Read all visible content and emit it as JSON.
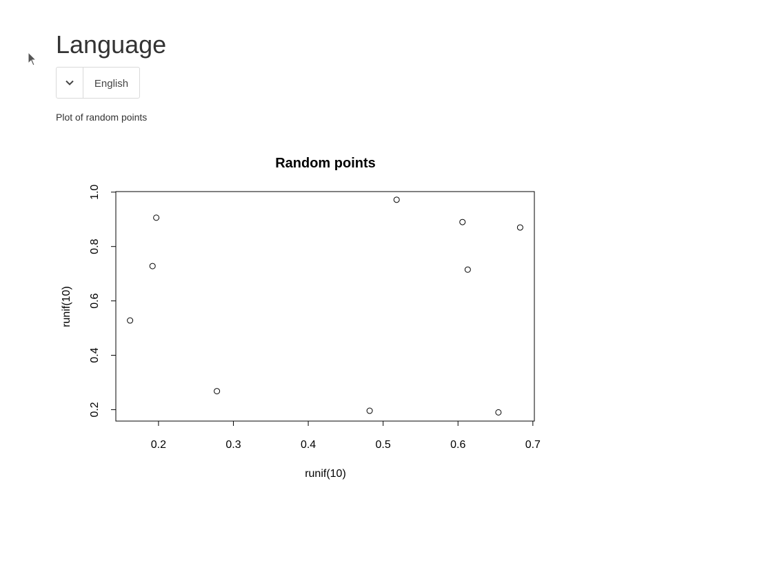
{
  "language_section": {
    "title": "Language",
    "selected_language": "English",
    "dropdown_icon": "chevron-down-icon"
  },
  "plot_caption": "Plot of random points",
  "pointer_icon": "mouse-pointer-icon",
  "chart_data": {
    "type": "scatter",
    "title": "Random points",
    "xlabel": "runif(10)",
    "ylabel": "runif(10)",
    "xlim": [
      0.143,
      0.702
    ],
    "ylim": [
      0.158,
      1.002
    ],
    "xticks": [
      0.2,
      0.3,
      0.4,
      0.5,
      0.6,
      0.7
    ],
    "yticks": [
      0.2,
      0.4,
      0.6,
      0.8,
      1.0
    ],
    "xtick_labels": [
      "0.2",
      "0.3",
      "0.4",
      "0.5",
      "0.6",
      "0.7"
    ],
    "ytick_labels": [
      "0.2",
      "0.4",
      "0.6",
      "0.8",
      "1.0"
    ],
    "grid": false,
    "marker": "open-circle",
    "points": [
      {
        "x": 0.162,
        "y": 0.528
      },
      {
        "x": 0.192,
        "y": 0.728
      },
      {
        "x": 0.197,
        "y": 0.906
      },
      {
        "x": 0.278,
        "y": 0.268
      },
      {
        "x": 0.482,
        "y": 0.196
      },
      {
        "x": 0.518,
        "y": 0.972
      },
      {
        "x": 0.606,
        "y": 0.89
      },
      {
        "x": 0.613,
        "y": 0.715
      },
      {
        "x": 0.654,
        "y": 0.19
      },
      {
        "x": 0.683,
        "y": 0.87
      }
    ]
  }
}
